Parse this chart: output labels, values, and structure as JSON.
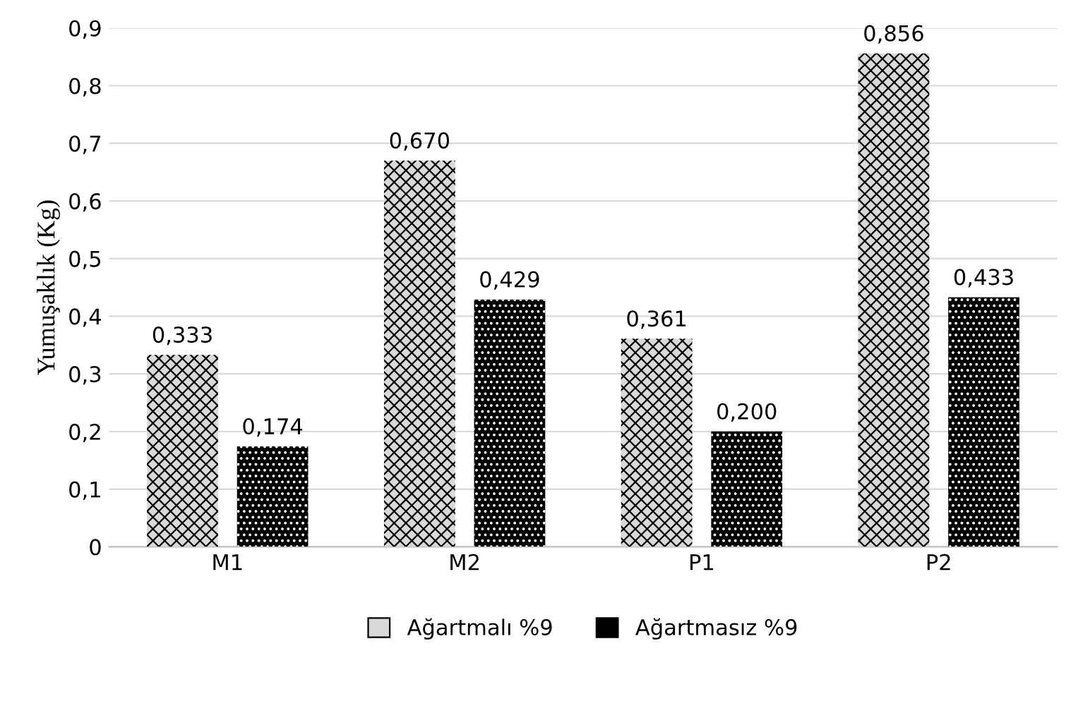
{
  "chart_data": {
    "type": "bar",
    "ylabel": "Yumuşaklık (Kg)",
    "categories": [
      "M1",
      "M2",
      "P1",
      "P2"
    ],
    "series": [
      {
        "name": "Ağartmalı %9",
        "color": "#d9d9d9",
        "values": [
          0.333,
          0.67,
          0.361,
          0.856
        ],
        "value_labels": [
          "0,333",
          "0,670",
          "0,361",
          "0,856"
        ]
      },
      {
        "name": "Ağartmasız %9",
        "color": "#000000",
        "values": [
          0.174,
          0.429,
          0.2,
          0.433
        ],
        "value_labels": [
          "0,174",
          "0,429",
          "0,200",
          "0,433"
        ]
      }
    ],
    "ylim": [
      0,
      0.9
    ],
    "yticks": [
      0,
      {
        "value": 0.1,
        "label": "0,1"
      },
      {
        "value": 0.2,
        "label": "0,2"
      },
      {
        "value": 0.3,
        "label": "0,3"
      },
      {
        "value": 0.4,
        "label": "0,4"
      },
      {
        "value": 0.5,
        "label": "0,5"
      },
      {
        "value": 0.6,
        "label": "0,6"
      },
      {
        "value": 0.7,
        "label": "0,7"
      },
      {
        "value": 0.8,
        "label": "0,8"
      },
      {
        "value": 0.9,
        "label": "0,9"
      }
    ],
    "grid": "y",
    "legend": "bottom"
  }
}
